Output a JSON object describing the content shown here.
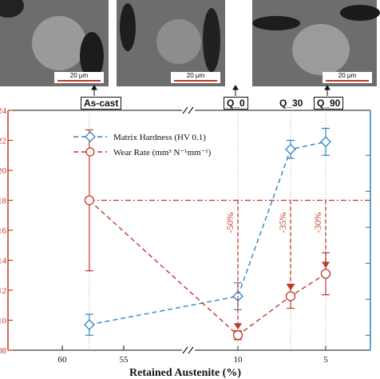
{
  "micrographs": [
    {
      "scale_bar": "20 μm",
      "condition_label": "As-cast"
    },
    {
      "scale_bar": "20 μm",
      "condition_label": "Q_0"
    },
    {
      "scale_bar": "20 μm",
      "condition_label": "Q_90"
    }
  ],
  "extra_condition_label": "Q_30",
  "chart_data": {
    "type": "line",
    "xlabel": "Retained Austenite (%)",
    "x_ticks": [
      "60",
      "55",
      "10",
      "5"
    ],
    "y_left_ticks": [
      "08",
      "10",
      "12",
      "14",
      "16",
      "18",
      "20",
      "22",
      "24"
    ],
    "y_left_color": "#c0392b",
    "y_right_color": "#2e86c1",
    "series": [
      {
        "name": "Matrix Hardness (HV 0.1)",
        "color": "#2e86c1",
        "marker": "diamond",
        "x": [
          57.8,
          10,
          7,
          5
        ],
        "y": [
          9.7,
          11.6,
          21.4,
          21.9
        ],
        "err": [
          0.7,
          0.9,
          0.6,
          0.9
        ]
      },
      {
        "name": "Wear Rate (mm³ N⁻¹mm⁻¹)",
        "color": "#c0392b",
        "marker": "circle",
        "x": [
          57.8,
          10,
          7,
          5
        ],
        "y": [
          18.0,
          9.0,
          11.6,
          13.1
        ],
        "err": [
          4.7,
          0.3,
          0.8,
          1.4
        ]
      }
    ],
    "reference_line_y": 18.0,
    "reductions": [
      "-50%",
      "-35%",
      "-30%"
    ],
    "ylim": [
      8,
      24
    ],
    "grid": false,
    "legend_position": "top-left"
  }
}
